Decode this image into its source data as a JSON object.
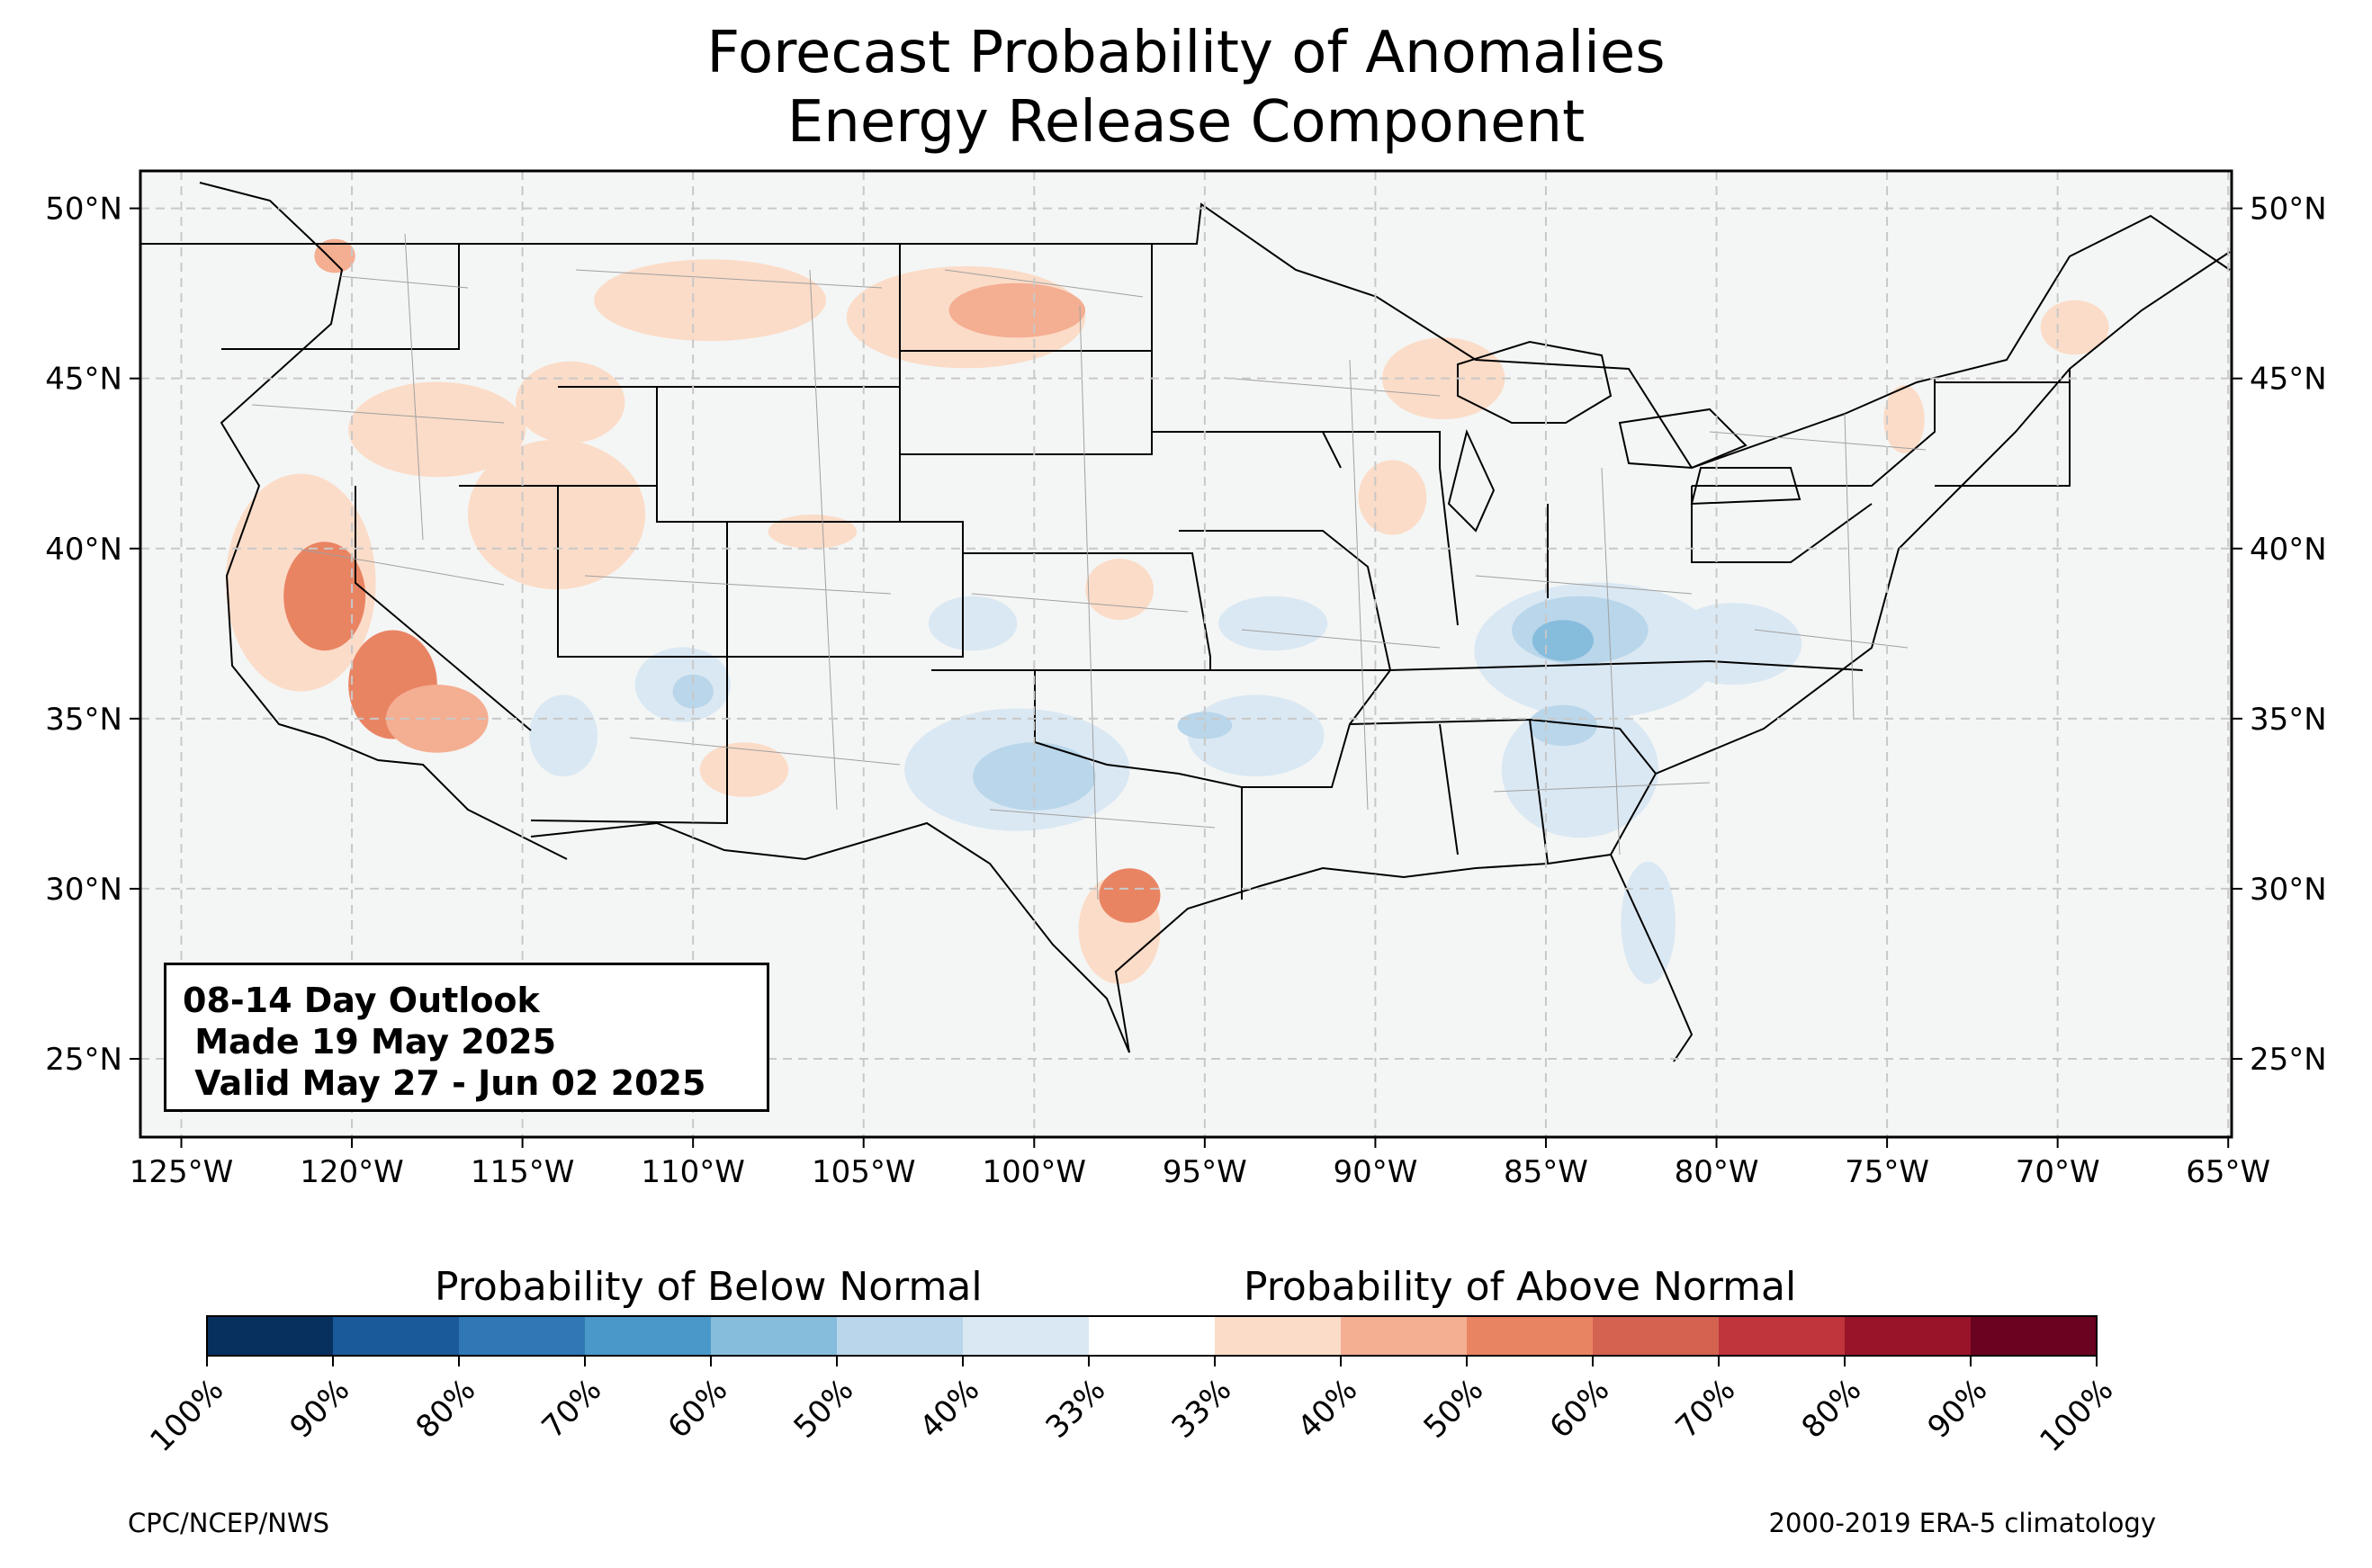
{
  "title": {
    "line1": "Forecast Probability of Anomalies",
    "line2": "Energy Release Component"
  },
  "outlook_box": {
    "line1": "08-14 Day Outlook",
    "line2": " Made 19 May 2025",
    "line3": " Valid May 27 - Jun 02 2025"
  },
  "map": {
    "lon_range": [
      -126.2,
      -64.9
    ],
    "lat_range": [
      22.7,
      51.1
    ],
    "lon_ticks": [
      {
        "value": -125,
        "label": "125°W"
      },
      {
        "value": -120,
        "label": "120°W"
      },
      {
        "value": -115,
        "label": "115°W"
      },
      {
        "value": -110,
        "label": "110°W"
      },
      {
        "value": -105,
        "label": "105°W"
      },
      {
        "value": -100,
        "label": "100°W"
      },
      {
        "value": -95,
        "label": "95°W"
      },
      {
        "value": -90,
        "label": "90°W"
      },
      {
        "value": -85,
        "label": "85°W"
      },
      {
        "value": -80,
        "label": "80°W"
      },
      {
        "value": -75,
        "label": "75°W"
      },
      {
        "value": -70,
        "label": "70°W"
      },
      {
        "value": -65,
        "label": "65°W"
      }
    ],
    "lat_ticks": [
      {
        "value": 25,
        "label": "25°N"
      },
      {
        "value": 30,
        "label": "30°N"
      },
      {
        "value": 35,
        "label": "35°N"
      },
      {
        "value": 40,
        "label": "40°N"
      },
      {
        "value": 45,
        "label": "45°N"
      },
      {
        "value": 50,
        "label": "50°N"
      }
    ],
    "colors": {
      "background": "#f4f6f5",
      "border": "#000000",
      "gridline": "#c8c8c8",
      "county_lines": "#a0a0a0"
    },
    "anomaly_regions": [
      {
        "type": "above",
        "level": 40,
        "center": [
          -121.5,
          39.0
        ],
        "radius": [
          2.2,
          3.2
        ]
      },
      {
        "type": "above",
        "level": 60,
        "center": [
          -120.8,
          38.6
        ],
        "radius": [
          1.2,
          1.6
        ]
      },
      {
        "type": "above",
        "level": 60,
        "center": [
          -118.8,
          36.0
        ],
        "radius": [
          1.3,
          1.6
        ]
      },
      {
        "type": "above",
        "level": 50,
        "center": [
          -117.5,
          35.0
        ],
        "radius": [
          1.5,
          1.0
        ]
      },
      {
        "type": "above",
        "level": 40,
        "center": [
          -117.5,
          43.5
        ],
        "radius": [
          2.6,
          1.4
        ]
      },
      {
        "type": "above",
        "level": 40,
        "center": [
          -114.0,
          41.0
        ],
        "radius": [
          2.6,
          2.2
        ]
      },
      {
        "type": "above",
        "level": 40,
        "center": [
          -113.6,
          44.3
        ],
        "radius": [
          1.6,
          1.2
        ]
      },
      {
        "type": "above",
        "level": 50,
        "center": [
          -120.5,
          48.6
        ],
        "radius": [
          0.6,
          0.5
        ]
      },
      {
        "type": "above",
        "level": 40,
        "center": [
          -109.5,
          47.3
        ],
        "radius": [
          3.4,
          1.2
        ]
      },
      {
        "type": "above",
        "level": 40,
        "center": [
          -102.0,
          46.8
        ],
        "radius": [
          3.5,
          1.5
        ]
      },
      {
        "type": "above",
        "level": 50,
        "center": [
          -100.5,
          47.0
        ],
        "radius": [
          2.0,
          0.8
        ]
      },
      {
        "type": "above",
        "level": 40,
        "center": [
          -97.5,
          28.8
        ],
        "radius": [
          1.2,
          1.6
        ]
      },
      {
        "type": "above",
        "level": 60,
        "center": [
          -97.2,
          29.8
        ],
        "radius": [
          0.9,
          0.8
        ]
      },
      {
        "type": "above",
        "level": 40,
        "center": [
          -89.5,
          41.5
        ],
        "radius": [
          1.0,
          1.1
        ]
      },
      {
        "type": "above",
        "level": 40,
        "center": [
          -88.0,
          45.0
        ],
        "radius": [
          1.8,
          1.2
        ]
      },
      {
        "type": "above",
        "level": 40,
        "center": [
          -69.5,
          46.5
        ],
        "radius": [
          1.0,
          0.8
        ]
      },
      {
        "type": "above",
        "level": 40,
        "center": [
          -74.5,
          43.8
        ],
        "radius": [
          0.6,
          1.0
        ]
      },
      {
        "type": "above",
        "level": 40,
        "center": [
          -106.5,
          40.5
        ],
        "radius": [
          1.3,
          0.5
        ]
      },
      {
        "type": "above",
        "level": 40,
        "center": [
          -97.5,
          38.8
        ],
        "radius": [
          1.0,
          0.9
        ]
      },
      {
        "type": "above",
        "level": 40,
        "center": [
          -108.5,
          33.5
        ],
        "radius": [
          1.3,
          0.8
        ]
      },
      {
        "type": "below",
        "level": 40,
        "center": [
          -83.5,
          37.0
        ],
        "radius": [
          3.6,
          2.0
        ]
      },
      {
        "type": "below",
        "level": 50,
        "center": [
          -84.0,
          37.6
        ],
        "radius": [
          2.0,
          1.0
        ]
      },
      {
        "type": "below",
        "level": 60,
        "center": [
          -84.5,
          37.3
        ],
        "radius": [
          0.9,
          0.6
        ]
      },
      {
        "type": "below",
        "level": 40,
        "center": [
          -84.0,
          33.5
        ],
        "radius": [
          2.3,
          2.0
        ]
      },
      {
        "type": "below",
        "level": 50,
        "center": [
          -84.5,
          34.8
        ],
        "radius": [
          1.0,
          0.6
        ]
      },
      {
        "type": "below",
        "level": 40,
        "center": [
          -100.5,
          33.5
        ],
        "radius": [
          3.3,
          1.8
        ]
      },
      {
        "type": "below",
        "level": 50,
        "center": [
          -100.0,
          33.3
        ],
        "radius": [
          1.8,
          1.0
        ]
      },
      {
        "type": "below",
        "level": 40,
        "center": [
          -93.5,
          34.5
        ],
        "radius": [
          2.0,
          1.2
        ]
      },
      {
        "type": "below",
        "level": 50,
        "center": [
          -95.0,
          34.8
        ],
        "radius": [
          0.8,
          0.4
        ]
      },
      {
        "type": "below",
        "level": 40,
        "center": [
          -110.3,
          36.0
        ],
        "radius": [
          1.4,
          1.1
        ]
      },
      {
        "type": "below",
        "level": 50,
        "center": [
          -110.0,
          35.8
        ],
        "radius": [
          0.6,
          0.5
        ]
      },
      {
        "type": "below",
        "level": 40,
        "center": [
          -113.8,
          34.5
        ],
        "radius": [
          1.0,
          1.2
        ]
      },
      {
        "type": "below",
        "level": 40,
        "center": [
          -101.8,
          37.8
        ],
        "radius": [
          1.3,
          0.8
        ]
      },
      {
        "type": "below",
        "level": 40,
        "center": [
          -93.0,
          37.8
        ],
        "radius": [
          1.6,
          0.8
        ]
      },
      {
        "type": "below",
        "level": 40,
        "center": [
          -79.5,
          37.2
        ],
        "radius": [
          2.0,
          1.2
        ]
      },
      {
        "type": "below",
        "level": 40,
        "center": [
          -82.0,
          29.0
        ],
        "radius": [
          0.8,
          1.8
        ]
      }
    ]
  },
  "colorbar": {
    "below_label": "Probability of Below Normal",
    "above_label": "Probability of Above Normal",
    "tick_labels": [
      "100%",
      "90%",
      "80%",
      "70%",
      "60%",
      "50%",
      "40%",
      "33%",
      "33%",
      "40%",
      "50%",
      "60%",
      "70%",
      "80%",
      "90%",
      "100%"
    ],
    "colors": [
      "#07305f",
      "#1b5a9a",
      "#2f78b5",
      "#4a98c9",
      "#86bcdc",
      "#b9d6ea",
      "#dae8f3",
      "#ffffff",
      "#fbdcc8",
      "#f4ae92",
      "#e98463",
      "#d46250",
      "#c0343c",
      "#991428",
      "#6a0320"
    ]
  },
  "footer": {
    "left": "CPC/NCEP/NWS",
    "right": "2000-2019 ERA-5 climatology"
  }
}
